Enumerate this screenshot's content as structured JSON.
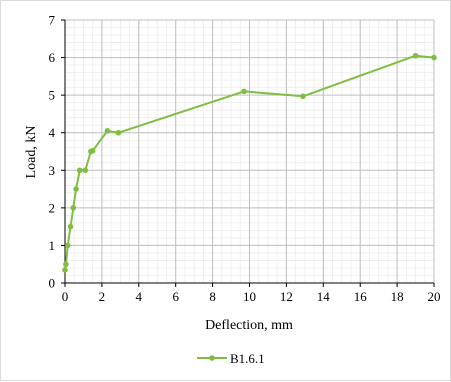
{
  "chart_data": {
    "type": "line",
    "title": "",
    "xlabel": "Deflection, mm",
    "ylabel": "Load, kN",
    "xlim": [
      0,
      20
    ],
    "ylim": [
      0,
      7
    ],
    "x_major_ticks": [
      0,
      2,
      4,
      6,
      8,
      10,
      12,
      14,
      16,
      18,
      20
    ],
    "y_major_ticks": [
      0,
      1,
      2,
      3,
      4,
      5,
      6,
      7
    ],
    "x_minor_step": 0.5,
    "y_minor_step": 0.2,
    "grid": true,
    "legend_position": "bottom",
    "series": [
      {
        "name": "B1.6.1",
        "color": "#7fbe41",
        "marker": "circle",
        "x": [
          0.0,
          0.05,
          0.15,
          0.3,
          0.45,
          0.6,
          0.8,
          1.1,
          1.4,
          1.5,
          2.3,
          2.9,
          9.7,
          12.9,
          19.0,
          20.0
        ],
        "y": [
          0.35,
          0.5,
          1.0,
          1.5,
          2.0,
          2.5,
          3.0,
          3.0,
          3.5,
          3.52,
          4.05,
          4.0,
          5.1,
          4.97,
          6.05,
          6.0
        ]
      }
    ]
  }
}
